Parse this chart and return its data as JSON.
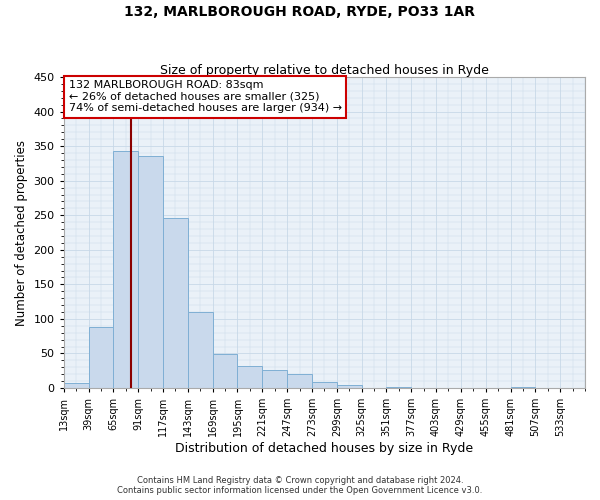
{
  "title_line1": "132, MARLBOROUGH ROAD, RYDE, PO33 1AR",
  "title_line2": "Size of property relative to detached houses in Ryde",
  "xlabel": "Distribution of detached houses by size in Ryde",
  "ylabel": "Number of detached properties",
  "bin_edges": [
    13,
    39,
    65,
    91,
    117,
    143,
    169,
    195,
    221,
    247,
    273,
    299,
    325,
    351,
    377,
    403,
    429,
    455,
    481,
    507,
    533,
    559
  ],
  "bar_heights": [
    7,
    88,
    343,
    335,
    246,
    110,
    49,
    32,
    26,
    21,
    9,
    5,
    0,
    2,
    0,
    0,
    0,
    0,
    1,
    0,
    0
  ],
  "bar_color": "#c9d9ec",
  "bar_edge_color": "#7fafd4",
  "property_size": 83,
  "vline_color": "#8b0000",
  "annotation_text": "132 MARLBOROUGH ROAD: 83sqm\n← 26% of detached houses are smaller (325)\n74% of semi-detached houses are larger (934) →",
  "annotation_box_edge": "#cc0000",
  "grid_color": "#c8d8e8",
  "background_color": "#eaf1f8",
  "ylim": [
    0,
    450
  ],
  "yticks": [
    0,
    50,
    100,
    150,
    200,
    250,
    300,
    350,
    400,
    450
  ],
  "footnote1": "Contains HM Land Registry data © Crown copyright and database right 2024.",
  "footnote2": "Contains public sector information licensed under the Open Government Licence v3.0."
}
